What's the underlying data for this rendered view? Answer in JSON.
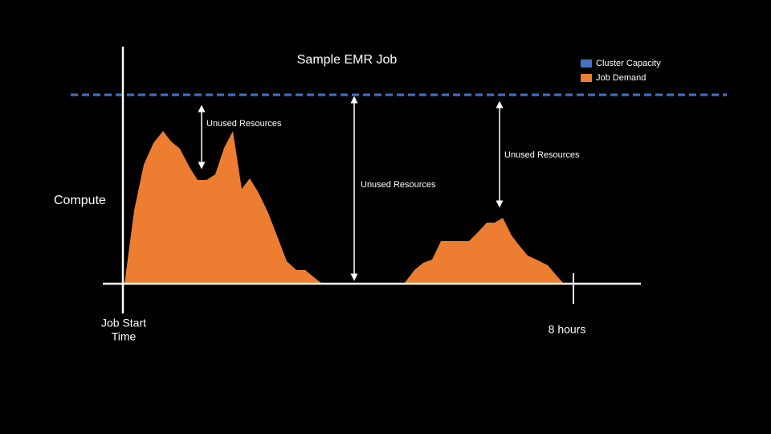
{
  "title": "Sample EMR Job",
  "legend": [
    {
      "label": "Cluster Capacity",
      "color": "#4472c4"
    },
    {
      "label": "Job Demand",
      "color": "#ed7d31"
    }
  ],
  "y_label": "Compute",
  "x_start_label": [
    "Job Start",
    "Time"
  ],
  "x_end_label": "8 hours",
  "annotations": [
    "Unused Resources",
    "Unused Resources",
    "Unused Resources"
  ]
}
